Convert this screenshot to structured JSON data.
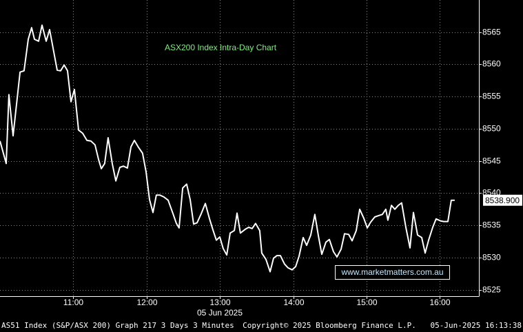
{
  "chart_data": {
    "type": "line",
    "title": "ASX200 Index Intra-Day Chart",
    "watermark": "www.marketmatters.com.au",
    "x_axis_label": "05 Jun 2025",
    "footer": [
      "AS51 Index (S&P/ASX 200) Graph 217 3 Days 3 Minutes",
      "Copyright© 2025 Bloomberg Finance L.P.",
      "05-Jun-2025 16:13:38"
    ],
    "color": "#ffffff",
    "x": [
      600,
      605.1,
      607.3,
      610.7,
      616.4,
      619.7,
      623.1,
      625.9,
      628.2,
      631.6,
      634.4,
      637.8,
      640.6,
      646.8,
      649.6,
      652.5,
      655.3,
      658.1,
      660.9,
      664.3,
      667.7,
      671.1,
      674.4,
      677.8,
      680.7,
      682.9,
      685.7,
      688.5,
      691.9,
      694.8,
      698.1,
      701.0,
      704.3,
      707.2,
      710.0,
      713.4,
      716.7,
      719.6,
      722.4,
      725.2,
      728.0,
      730.8,
      734.2,
      737.6,
      741.6,
      744.4,
      746.6,
      749.5,
      752.8,
      755.7,
      758.5,
      761.3,
      764.7,
      768.1,
      771.5,
      774.3,
      777.1,
      779.9,
      782.7,
      785.6,
      788.4,
      791.8,
      794.0,
      796.8,
      800.8,
      803.6,
      806.4,
      809.2,
      812.6,
      814.3,
      817.7,
      821.1,
      823.9,
      826.7,
      829.5,
      832.9,
      835.8,
      839.1,
      842.0,
      844.8,
      848.2,
      851.0,
      854.4,
      857.7,
      860.6,
      863.4,
      866.8,
      869.6,
      873.0,
      875.8,
      879.2,
      882.0,
      885.4,
      888.2,
      891.6,
      894.4,
      897.8,
      900.6,
      903.4,
      906.8,
      909.6,
      913.0,
      915.8,
      917.5,
      920.4,
      923.2,
      926.0,
      928.8,
      932.2,
      935.6,
      938.4,
      941.8,
      945.2,
      948.0,
      950.8,
      954.2,
      957.0,
      960.4,
      963.2,
      966.6,
      969.4,
      972.2
    ],
    "values": [
      8548.1,
      8544.6,
      8555.3,
      8548.9,
      8558.8,
      8559.0,
      8563.9,
      8565.7,
      8563.9,
      8563.6,
      8566.1,
      8563.6,
      8565.4,
      8559.1,
      8559.0,
      8559.9,
      8559.0,
      8554.2,
      8556.1,
      8549.8,
      8549.3,
      8548.2,
      8548.1,
      8547.5,
      8545.2,
      8543.8,
      8544.6,
      8548.6,
      8544.6,
      8541.9,
      8544.0,
      8544.2,
      8543.9,
      8547.2,
      8548.2,
      8547.1,
      8546.2,
      8543.3,
      8539.0,
      8537.0,
      8539.7,
      8539.7,
      8539.4,
      8538.9,
      8536.8,
      8535.3,
      8534.6,
      8540.8,
      8541.4,
      8539.0,
      8535.2,
      8535.4,
      8536.8,
      8538.4,
      8536.0,
      8534.3,
      8532.7,
      8533.2,
      8531.4,
      8530.4,
      8533.8,
      8534.2,
      8536.9,
      8533.8,
      8534.4,
      8534.7,
      8534.5,
      8535.3,
      8534.2,
      8530.7,
      8529.7,
      8527.8,
      8529.9,
      8530.3,
      8530.3,
      8529.0,
      8528.4,
      8528.1,
      8528.6,
      8530.2,
      8533.1,
      8531.9,
      8533.5,
      8536.7,
      8533.4,
      8530.5,
      8532.4,
      8532.8,
      8530.9,
      8530.1,
      8531.3,
      8533.7,
      8533.6,
      8532.6,
      8534.2,
      8537.5,
      8536.1,
      8534.6,
      8535.5,
      8536.3,
      8536.5,
      8536.7,
      8537.5,
      8535.8,
      8538.1,
      8537.5,
      8538.1,
      8538.5,
      8534.7,
      8531.5,
      8537.0,
      8533.5,
      8533.1,
      8530.7,
      8532.7,
      8534.7,
      8536.0,
      8535.7,
      8535.6,
      8535.6,
      8538.9,
      8538.9
    ],
    "last_value": {
      "value": 8538.9,
      "label": "8538.900"
    },
    "xlim": [
      600,
      992
    ],
    "ylim": [
      8524,
      8570
    ],
    "xticks": [
      {
        "value": 660,
        "label": "11:00"
      },
      {
        "value": 720,
        "label": "12:00"
      },
      {
        "value": 780,
        "label": "13:00"
      },
      {
        "value": 840,
        "label": "14:00"
      },
      {
        "value": 900,
        "label": "15:00"
      },
      {
        "value": 960,
        "label": "16:00"
      }
    ],
    "yticks": [
      8525,
      8530,
      8535,
      8540,
      8545,
      8550,
      8555,
      8560,
      8565
    ],
    "grid": true
  }
}
